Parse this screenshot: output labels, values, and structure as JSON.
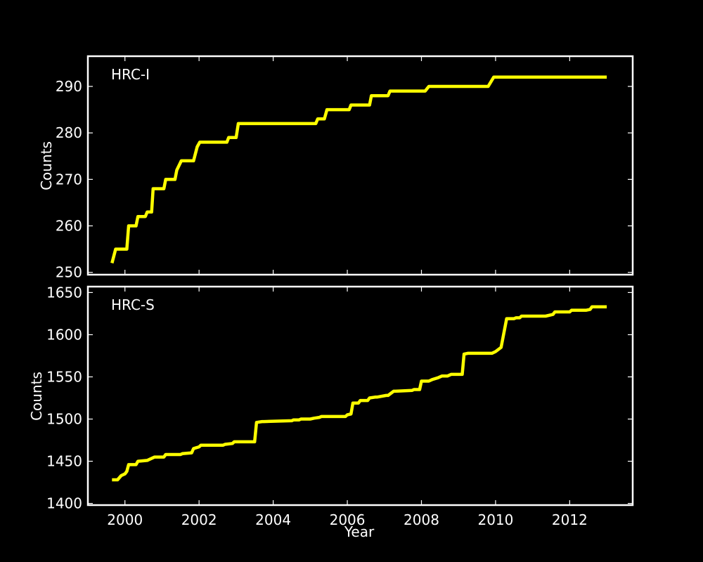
{
  "figure": {
    "background": "#000000",
    "axis_color": "#ffffff",
    "line_color": "#ffff00",
    "xlabel": "Year"
  },
  "chart_data": [
    {
      "type": "line",
      "panel_label": "HRC-I",
      "ylabel": "Counts",
      "xlim": [
        1999.0,
        2013.7
      ],
      "ylim": [
        249.5,
        296.5
      ],
      "xticks": [
        2000,
        2002,
        2004,
        2006,
        2008,
        2010,
        2012
      ],
      "yticks": [
        250,
        260,
        270,
        280,
        290
      ],
      "grid": false,
      "series": [
        {
          "color": "#ffff00",
          "x": [
            1999.65,
            1999.75,
            1999.8,
            2000.05,
            2000.1,
            2000.3,
            2000.35,
            2000.55,
            2000.6,
            2000.72,
            2000.76,
            2001.05,
            2001.1,
            2001.35,
            2001.4,
            2001.52,
            2001.58,
            2001.85,
            2001.95,
            2002.02,
            2002.1,
            2002.75,
            2002.8,
            2003.0,
            2003.06,
            2005.15,
            2005.2,
            2005.38,
            2005.45,
            2005.55,
            2005.6,
            2006.05,
            2006.1,
            2006.6,
            2006.65,
            2007.1,
            2007.15,
            2007.5,
            2007.55,
            2008.1,
            2008.2,
            2009.8,
            2009.95,
            2013.0
          ],
          "y": [
            252,
            255,
            255,
            255,
            260,
            260,
            262,
            262,
            263,
            263,
            268,
            268,
            270,
            270,
            272,
            274,
            274,
            274,
            277,
            278,
            278,
            278,
            279,
            279,
            282,
            282,
            283,
            283,
            285,
            285,
            285,
            285,
            286,
            286,
            288,
            288,
            289,
            289,
            289,
            289,
            290,
            290,
            292,
            292
          ]
        }
      ]
    },
    {
      "type": "line",
      "panel_label": "HRC-S",
      "ylabel": "Counts",
      "xlabel": "Year",
      "xlim": [
        1999.0,
        2013.7
      ],
      "ylim": [
        1398,
        1657
      ],
      "xticks": [
        2000,
        2002,
        2004,
        2006,
        2008,
        2010,
        2012
      ],
      "yticks": [
        1400,
        1450,
        1500,
        1550,
        1600,
        1650
      ],
      "grid": false,
      "series": [
        {
          "color": "#ffff00",
          "x": [
            1999.65,
            1999.8,
            1999.9,
            2000.0,
            2000.05,
            2000.1,
            2000.3,
            2000.35,
            2000.6,
            2000.65,
            2000.8,
            2000.9,
            2001.05,
            2001.1,
            2001.5,
            2001.55,
            2001.8,
            2001.85,
            2002.0,
            2002.05,
            2002.65,
            2002.7,
            2002.9,
            2002.95,
            2003.5,
            2003.55,
            2003.7,
            2003.75,
            2004.5,
            2004.55,
            2004.7,
            2004.75,
            2005.0,
            2005.1,
            2005.25,
            2005.3,
            2005.95,
            2006.0,
            2006.1,
            2006.15,
            2006.3,
            2006.35,
            2006.55,
            2006.6,
            2006.75,
            2006.8,
            2007.05,
            2007.1,
            2007.25,
            2007.3,
            2007.75,
            2007.8,
            2007.95,
            2008.0,
            2008.2,
            2008.3,
            2008.45,
            2008.55,
            2008.7,
            2008.8,
            2009.05,
            2009.1,
            2009.15,
            2009.25,
            2009.9,
            2010.0,
            2010.15,
            2010.3,
            2010.5,
            2010.55,
            2010.65,
            2010.7,
            2011.35,
            2011.55,
            2011.6,
            2012.0,
            2012.05,
            2012.45,
            2012.55,
            2012.6,
            2013.0
          ],
          "y": [
            1428,
            1428,
            1433,
            1435,
            1438,
            1446,
            1446,
            1450,
            1451,
            1452,
            1455,
            1455,
            1455,
            1458,
            1458,
            1459,
            1460,
            1465,
            1467,
            1469,
            1469,
            1470,
            1471,
            1473,
            1473,
            1496,
            1497,
            1497,
            1498,
            1499,
            1499,
            1500,
            1500,
            1501,
            1502,
            1503,
            1503,
            1505,
            1506,
            1519,
            1519,
            1522,
            1522,
            1525,
            1526,
            1526,
            1528,
            1528,
            1533,
            1533,
            1534,
            1535,
            1535,
            1545,
            1545,
            1547,
            1549,
            1551,
            1551,
            1553,
            1553,
            1553,
            1577,
            1578,
            1578,
            1580,
            1585,
            1619,
            1619,
            1620,
            1620,
            1622,
            1622,
            1624,
            1627,
            1627,
            1629,
            1629,
            1630,
            1633,
            1633
          ]
        }
      ]
    }
  ]
}
